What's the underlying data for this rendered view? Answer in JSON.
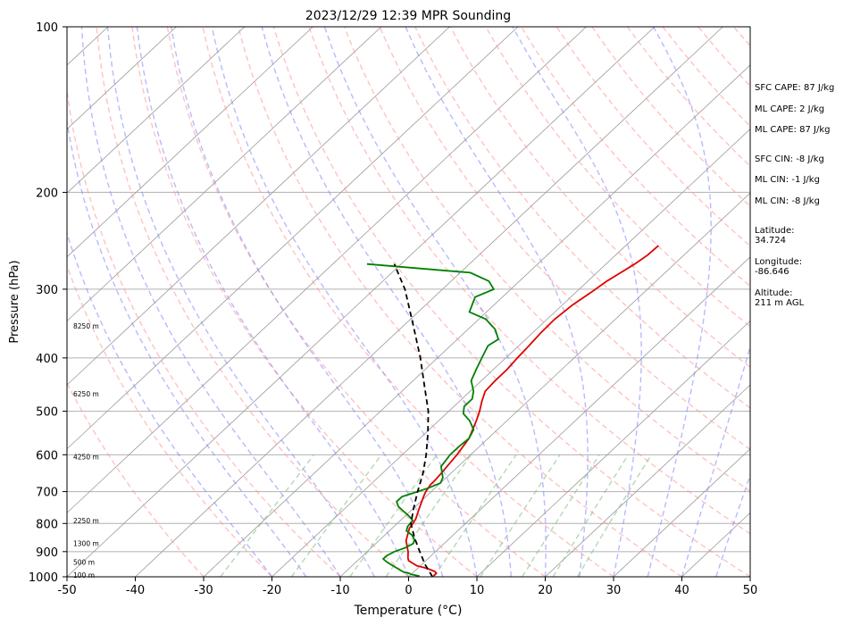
{
  "chart_data": {
    "type": "line",
    "title": "2023/12/29 12:39 MPR Sounding",
    "xlabel": "Temperature (°C)",
    "ylabel": "Pressure (hPa)",
    "xlim": [
      -50,
      50
    ],
    "ylim": [
      1000,
      100
    ],
    "y_scale": "log",
    "x_ticks": [
      "-50",
      "-40",
      "-30",
      "-20",
      "-10",
      "0",
      "10",
      "20",
      "30",
      "40",
      "50"
    ],
    "y_ticks": [
      "100",
      "200",
      "300",
      "400",
      "500",
      "600",
      "700",
      "800",
      "900",
      "1000"
    ],
    "grid": true,
    "colors": {
      "temperature": "#e00000",
      "dewpoint": "#008000",
      "parcel": "#000000",
      "isotherms": "#999999",
      "dry_adiabats": "#ff9090",
      "moist_adiabats": "#8080ff",
      "mixing_ratio": "#80c080"
    },
    "series": [
      {
        "key": "temperature",
        "pressure": [
          996,
          985,
          978,
          970,
          962,
          955,
          945,
          935,
          925,
          900,
          880,
          860,
          845,
          830,
          815,
          800,
          785,
          770,
          755,
          740,
          725,
          710,
          700,
          690,
          680,
          670,
          650,
          600,
          560,
          520,
          500,
          480,
          460,
          440,
          420,
          400,
          380,
          360,
          340,
          320,
          305,
          290,
          280,
          270,
          260,
          250
        ],
        "temp_c": [
          3.5,
          3.5,
          3.0,
          2.0,
          0.8,
          -0.5,
          -1.5,
          -2.5,
          -3.0,
          -4.0,
          -5.0,
          -6.0,
          -6.5,
          -7.0,
          -7.5,
          -7.7,
          -8.0,
          -8.5,
          -9.0,
          -9.5,
          -10.0,
          -10.5,
          -10.8,
          -11.0,
          -11.2,
          -11.2,
          -11.4,
          -12.0,
          -12.8,
          -14.5,
          -15.5,
          -16.7,
          -17.8,
          -18.0,
          -18.0,
          -18.3,
          -18.5,
          -18.8,
          -18.9,
          -18.5,
          -17.8,
          -17.2,
          -16.5,
          -15.8,
          -15.3,
          -15.2
        ]
      },
      {
        "key": "dewpoint",
        "pressure": [
          997,
          990,
          985,
          980,
          970,
          955,
          940,
          928,
          915,
          900,
          885,
          870,
          855,
          840,
          825,
          810,
          790,
          775,
          760,
          745,
          730,
          715,
          705,
          690,
          675,
          660,
          645,
          630,
          600,
          580,
          560,
          540,
          520,
          505,
          490,
          475,
          460,
          440,
          420,
          400,
          390,
          380,
          370,
          355,
          340,
          330,
          310,
          300,
          290,
          280,
          270
        ],
        "temp_c": [
          1.5,
          0.0,
          -0.5,
          -1.5,
          -2.5,
          -4.0,
          -5.5,
          -6.5,
          -6.5,
          -6.0,
          -5.0,
          -4.5,
          -5.0,
          -6.0,
          -7.5,
          -8.0,
          -8.2,
          -9.5,
          -11.0,
          -12.5,
          -13.5,
          -13.5,
          -12.5,
          -11.0,
          -10.0,
          -10.5,
          -11.5,
          -12.5,
          -13.0,
          -13.0,
          -12.8,
          -13.5,
          -15.5,
          -17.5,
          -18.5,
          -18.5,
          -19.5,
          -21.5,
          -22.5,
          -23.5,
          -24.0,
          -24.5,
          -24.0,
          -26.0,
          -29.0,
          -32.5,
          -34.0,
          -32.5,
          -34.5,
          -38.5,
          -55.0
        ]
      },
      {
        "key": "parcel",
        "pressure": [
          1000,
          950,
          900,
          850,
          800,
          750,
          700,
          650,
          600,
          550,
          500,
          450,
          400,
          350,
          300,
          270
        ],
        "temp_c": [
          3.5,
          0.5,
          -2.3,
          -5.2,
          -8.0,
          -10.0,
          -12.0,
          -14.0,
          -16.5,
          -19.5,
          -23.0,
          -27.5,
          -32.5,
          -38.5,
          -45.5,
          -51.0
        ]
      }
    ],
    "height_labels": [
      "100 m",
      "500 m",
      "1300 m",
      "2250 m",
      "4250 m",
      "6250 m",
      "8250 m"
    ],
    "height_label_pressures": [
      993,
      940,
      870,
      790,
      605,
      465,
      350
    ]
  },
  "stats": {
    "sfc_cape": "SFC CAPE: 87 J/kg",
    "ml_cape_1": "ML CAPE: 2 J/kg",
    "ml_cape_2": "ML CAPE: 87 J/kg",
    "sfc_cin": "SFC CIN: -8 J/kg",
    "ml_cin_1": "ML CIN: -1 J/kg",
    "ml_cin_2": "ML CIN: -8 J/kg",
    "latitude": "Latitude:\n34.724",
    "longitude": "Longitude:\n-86.646",
    "altitude": "Altitude:\n211 m AGL"
  }
}
